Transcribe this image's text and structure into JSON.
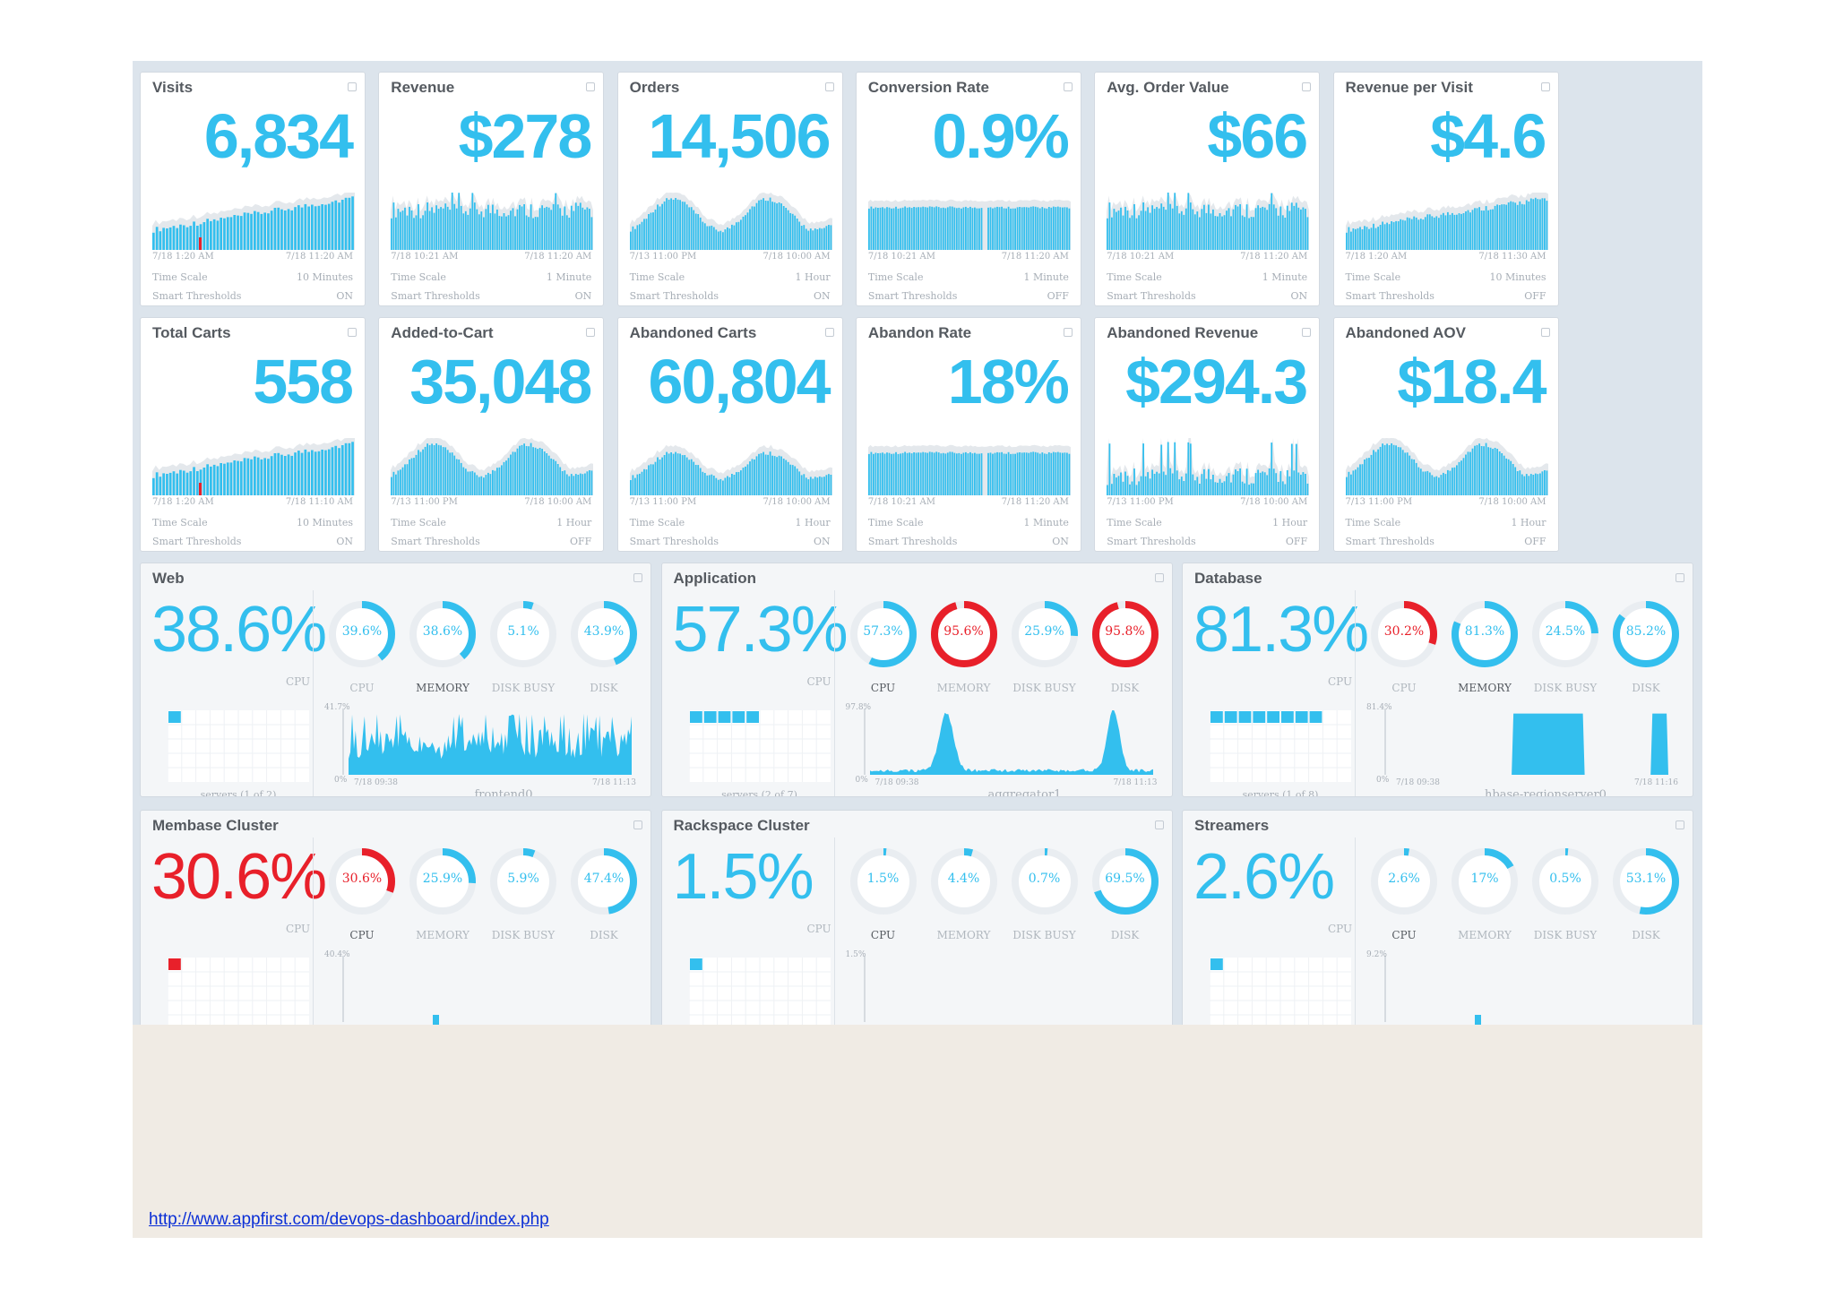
{
  "metric_cards": [
    {
      "title": "Visits",
      "value": "6,834",
      "date_start": "7/18 1:20 AM",
      "date_end": "7/18 11:20 AM",
      "time_scale_label": "Time Scale",
      "time_scale": "10 Minutes",
      "thresholds_label": "Smart Thresholds",
      "thresholds": "ON",
      "chart_data": {
        "type": "area",
        "style": "ramp",
        "marker": "red"
      }
    },
    {
      "title": "Revenue",
      "value": "$278",
      "date_start": "7/18 10:21 AM",
      "date_end": "7/18 11:20 AM",
      "time_scale_label": "Time Scale",
      "time_scale": "1 Minute",
      "thresholds_label": "Smart Thresholds",
      "thresholds": "ON",
      "chart_data": {
        "type": "bar",
        "style": "flat"
      }
    },
    {
      "title": "Orders",
      "value": "14,506",
      "date_start": "7/13 11:00 PM",
      "date_end": "7/18 10:00 AM",
      "time_scale_label": "Time Scale",
      "time_scale": "1 Hour",
      "thresholds_label": "Smart Thresholds",
      "thresholds": "ON",
      "chart_data": {
        "type": "bar",
        "style": "wave"
      }
    },
    {
      "title": "Conversion Rate",
      "value": "0.9%",
      "date_start": "7/18 10:21 AM",
      "date_end": "7/18 11:20 AM",
      "time_scale_label": "Time Scale",
      "time_scale": "1 Minute",
      "thresholds_label": "Smart Thresholds",
      "thresholds": "OFF",
      "chart_data": {
        "type": "bar",
        "style": "block"
      }
    },
    {
      "title": "Avg. Order Value",
      "value": "$66",
      "date_start": "7/18 10:21 AM",
      "date_end": "7/18 11:20 AM",
      "time_scale_label": "Time Scale",
      "time_scale": "1 Minute",
      "thresholds_label": "Smart Thresholds",
      "thresholds": "ON",
      "chart_data": {
        "type": "bar",
        "style": "flat"
      }
    },
    {
      "title": "Revenue per Visit",
      "value": "$4.6",
      "date_start": "7/18 1:20 AM",
      "date_end": "7/18 11:30 AM",
      "time_scale_label": "Time Scale",
      "time_scale": "10 Minutes",
      "thresholds_label": "Smart Thresholds",
      "thresholds": "OFF",
      "chart_data": {
        "type": "bar",
        "style": "ramp"
      }
    },
    {
      "title": "Total Carts",
      "value": "558",
      "date_start": "7/18 1:20 AM",
      "date_end": "7/18 11:10 AM",
      "time_scale_label": "Time Scale",
      "time_scale": "10 Minutes",
      "thresholds_label": "Smart Thresholds",
      "thresholds": "ON",
      "chart_data": {
        "type": "area",
        "style": "ramp",
        "marker": "red"
      }
    },
    {
      "title": "Added-to-Cart",
      "value": "35,048",
      "date_start": "7/13 11:00 PM",
      "date_end": "7/18 10:00 AM",
      "time_scale_label": "Time Scale",
      "time_scale": "1 Hour",
      "thresholds_label": "Smart Thresholds",
      "thresholds": "OFF",
      "chart_data": {
        "type": "bar",
        "style": "wave"
      }
    },
    {
      "title": "Abandoned Carts",
      "value": "60,804",
      "date_start": "7/13 11:00 PM",
      "date_end": "7/18 10:00 AM",
      "time_scale_label": "Time Scale",
      "time_scale": "1 Hour",
      "thresholds_label": "Smart Thresholds",
      "thresholds": "ON",
      "chart_data": {
        "type": "bar",
        "style": "wave-small"
      }
    },
    {
      "title": "Abandon Rate",
      "value": "18%",
      "date_start": "7/18 10:21 AM",
      "date_end": "7/18 11:20 AM",
      "time_scale_label": "Time Scale",
      "time_scale": "1 Minute",
      "thresholds_label": "Smart Thresholds",
      "thresholds": "ON",
      "chart_data": {
        "type": "bar",
        "style": "block"
      }
    },
    {
      "title": "Abandoned Revenue",
      "value": "$294.3",
      "date_start": "7/13 11:00 PM",
      "date_end": "7/18 10:00 AM",
      "time_scale_label": "Time Scale",
      "time_scale": "1 Hour",
      "thresholds_label": "Smart Thresholds",
      "thresholds": "OFF",
      "chart_data": {
        "type": "bar",
        "style": "spiky"
      }
    },
    {
      "title": "Abandoned AOV",
      "value": "$18.4",
      "date_start": "7/13 11:00 PM",
      "date_end": "7/18 10:00 AM",
      "time_scale_label": "Time Scale",
      "time_scale": "1 Hour",
      "thresholds_label": "Smart Thresholds",
      "thresholds": "OFF",
      "chart_data": {
        "type": "bar",
        "style": "wave"
      }
    }
  ],
  "cluster_cards": [
    {
      "title": "Web",
      "value": "38.6%",
      "value_color": "#33bfee",
      "value_label": "CPU",
      "gauges": [
        {
          "value": "39.6%",
          "pct": 39.6,
          "label": "CPU",
          "red": false,
          "hl": false
        },
        {
          "value": "38.6%",
          "pct": 38.6,
          "label": "MEMORY",
          "red": false,
          "hl": true
        },
        {
          "value": "5.1%",
          "pct": 5.1,
          "label": "DISK BUSY",
          "red": false,
          "hl": false
        },
        {
          "value": "43.9%",
          "pct": 43.9,
          "label": "DISK",
          "red": false,
          "hl": false
        }
      ],
      "servers": "servers (1 of 2)",
      "servers_filled": 1,
      "plot_max": "41.7%",
      "plot_min": "0%",
      "plot_start": "7/18 09:38",
      "plot_end": "7/18 11:13",
      "plot_name": "frontend0",
      "chart_data": {
        "type": "area",
        "style": "noisy"
      }
    },
    {
      "title": "Application",
      "value": "57.3%",
      "value_color": "#33bfee",
      "value_label": "CPU",
      "gauges": [
        {
          "value": "57.3%",
          "pct": 57.3,
          "label": "CPU",
          "red": false,
          "hl": true
        },
        {
          "value": "95.6%",
          "pct": 95.6,
          "label": "MEMORY",
          "red": true,
          "hl": false
        },
        {
          "value": "25.9%",
          "pct": 25.9,
          "label": "DISK BUSY",
          "red": false,
          "hl": false
        },
        {
          "value": "95.8%",
          "pct": 95.8,
          "label": "DISK",
          "red": true,
          "hl": false
        }
      ],
      "servers": "servers (2 of 7)",
      "servers_filled": 5,
      "plot_max": "97.8%",
      "plot_min": "0%",
      "plot_start": "7/18 09:38",
      "plot_end": "7/18 11:13",
      "plot_name": "aggregator1",
      "chart_data": {
        "type": "area",
        "style": "two-peaks"
      }
    },
    {
      "title": "Database",
      "value": "81.3%",
      "value_color": "#33bfee",
      "value_label": "CPU",
      "gauges": [
        {
          "value": "30.2%",
          "pct": 30.2,
          "label": "CPU",
          "red": true,
          "hl": false
        },
        {
          "value": "81.3%",
          "pct": 81.3,
          "label": "MEMORY",
          "red": false,
          "hl": true
        },
        {
          "value": "24.5%",
          "pct": 24.5,
          "label": "DISK BUSY",
          "red": false,
          "hl": false
        },
        {
          "value": "85.2%",
          "pct": 85.2,
          "label": "DISK",
          "red": false,
          "hl": false
        }
      ],
      "servers": "servers (1 of 8)",
      "servers_filled": 8,
      "plot_max": "81.4%",
      "plot_min": "0%",
      "plot_start": "7/18 09:38",
      "plot_end": "7/18 11:16",
      "plot_name": "hbase-regionserver0",
      "chart_data": {
        "type": "area",
        "style": "plateau"
      }
    },
    {
      "title": "Membase Cluster",
      "value": "30.6%",
      "value_color": "#e8202a",
      "value_label": "CPU",
      "gauges": [
        {
          "value": "30.6%",
          "pct": 30.6,
          "label": "CPU",
          "red": true,
          "hl": true
        },
        {
          "value": "25.9%",
          "pct": 25.9,
          "label": "MEMORY",
          "red": false,
          "hl": false
        },
        {
          "value": "5.9%",
          "pct": 5.9,
          "label": "DISK BUSY",
          "red": false,
          "hl": false
        },
        {
          "value": "47.4%",
          "pct": 47.4,
          "label": "DISK",
          "red": false,
          "hl": false
        }
      ],
      "servers": "",
      "servers_filled": 1,
      "servers_red": true,
      "plot_max": "40.4%",
      "plot_min": "",
      "plot_start": "",
      "plot_end": "",
      "plot_name": "",
      "chart_data": {
        "type": "area",
        "style": "stub"
      }
    },
    {
      "title": "Rackspace Cluster",
      "value": "1.5%",
      "value_color": "#33bfee",
      "value_label": "CPU",
      "gauges": [
        {
          "value": "1.5%",
          "pct": 1.5,
          "label": "CPU",
          "red": false,
          "hl": true
        },
        {
          "value": "4.4%",
          "pct": 4.4,
          "label": "MEMORY",
          "red": false,
          "hl": false
        },
        {
          "value": "0.7%",
          "pct": 0.7,
          "label": "DISK BUSY",
          "red": false,
          "hl": false
        },
        {
          "value": "69.5%",
          "pct": 69.5,
          "label": "DISK",
          "red": false,
          "hl": false
        }
      ],
      "servers": "",
      "servers_filled": 1,
      "plot_max": "1.5%",
      "plot_min": "",
      "plot_start": "",
      "plot_end": "",
      "plot_name": "",
      "chart_data": {
        "type": "area",
        "style": "stub-small"
      }
    },
    {
      "title": "Streamers",
      "value": "2.6%",
      "value_color": "#33bfee",
      "value_label": "CPU",
      "gauges": [
        {
          "value": "2.6%",
          "pct": 2.6,
          "label": "CPU",
          "red": false,
          "hl": true
        },
        {
          "value": "17%",
          "pct": 17,
          "label": "MEMORY",
          "red": false,
          "hl": false
        },
        {
          "value": "0.5%",
          "pct": 0.5,
          "label": "DISK BUSY",
          "red": false,
          "hl": false
        },
        {
          "value": "53.1%",
          "pct": 53.1,
          "label": "DISK",
          "red": false,
          "hl": false
        }
      ],
      "servers": "",
      "servers_filled": 1,
      "plot_max": "9.2%",
      "plot_min": "",
      "plot_start": "",
      "plot_end": "",
      "plot_name": "",
      "chart_data": {
        "type": "area",
        "style": "stub"
      }
    }
  ],
  "colors": {
    "accent": "#33bfee",
    "alert": "#e8202a",
    "panel_bg": "#dce4ec",
    "slide_bg": "#f0ebe4"
  },
  "footer": {
    "link_text": "http://www.appfirst.com/devops-dashboard/index.php"
  }
}
